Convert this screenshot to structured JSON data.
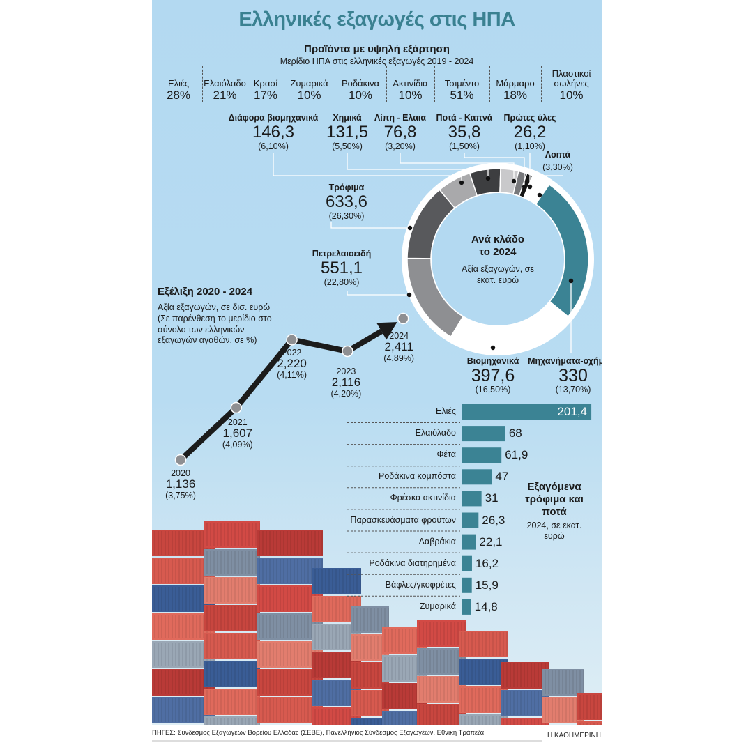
{
  "title": "Ελληνικές εξαγωγές στις ΗΠΑ",
  "products": {
    "heading": "Προϊόντα με υψηλή εξάρτηση",
    "subheading": "Μερίδιο ΗΠΑ στις ελληνικές εξαγωγές 2019 - 2024",
    "items": [
      {
        "name": "Ελιές",
        "share": "28%"
      },
      {
        "name": "Ελαιόλαδο",
        "share": "21%"
      },
      {
        "name": "Κρασί",
        "share": "17%"
      },
      {
        "name": "Ζυμαρικά",
        "share": "10%"
      },
      {
        "name": "Ροδάκινα",
        "share": "10%"
      },
      {
        "name": "Ακτινίδια",
        "share": "10%"
      },
      {
        "name": "Τσιμέντο",
        "share": "51%"
      },
      {
        "name": "Μάρμαρο",
        "share": "18%"
      },
      {
        "name": "Πλαστικοί σωλήνες",
        "share": "10%"
      }
    ]
  },
  "chart_data": [
    {
      "type": "pie",
      "title": "Ανά κλάδο το 2024",
      "subtitle": "Αξία εξαγωγών, σε εκατ. ευρώ",
      "slices": [
        {
          "label": "Διάφορα βιομηχανικά",
          "value": 146.3,
          "value_text": "146,3",
          "pct_text": "(6,10%)",
          "pct": 6.1,
          "color": "#a9a9ab"
        },
        {
          "label": "Χημικά",
          "value": 131.5,
          "value_text": "131,5",
          "pct_text": "(5,50%)",
          "pct": 5.5,
          "color": "#3d3e40"
        },
        {
          "label": "Λίπη - Ελαια",
          "value": 76.8,
          "value_text": "76,8",
          "pct_text": "(3,20%)",
          "pct": 3.2,
          "color": "#c9c9cb"
        },
        {
          "label": "Ποτά - Καπνά",
          "value": 35.8,
          "value_text": "35,8",
          "pct_text": "(1,50%)",
          "pct": 1.5,
          "color": "#77787b"
        },
        {
          "label": "Πρώτες ύλες",
          "value": 26.2,
          "value_text": "26,2",
          "pct_text": "(1,10%)",
          "pct": 1.1,
          "color": "#151515"
        },
        {
          "label": "Λοιπά",
          "value": null,
          "value_text": null,
          "pct_text": "(3,30%)",
          "pct": 3.3,
          "color": "#ffffff"
        },
        {
          "label": "Τρόφιμα",
          "value": 633.6,
          "value_text": "633,6",
          "pct_text": "(26,30%)",
          "pct": 26.3,
          "color": "#3b8394"
        },
        {
          "label": "Πετρελαιοειδή",
          "value": 551.1,
          "value_text": "551,1",
          "pct_text": "(22,80%)",
          "pct": 22.8,
          "color": "#ffffff"
        },
        {
          "label": "Βιομηχανικά",
          "value": 397.6,
          "value_text": "397,6",
          "pct_text": "(16,50%)",
          "pct": 16.5,
          "color": "#8e8f92"
        },
        {
          "label": "Μηχανήματα-οχήματα",
          "value": 330,
          "value_text": "330",
          "pct_text": "(13,70%)",
          "pct": 13.7,
          "color": "#58595c"
        }
      ]
    },
    {
      "type": "line",
      "title": "Εξέλιξη 2020 - 2024",
      "subtitle": "Αξία εξαγωγών, σε δισ. ευρώ",
      "note": "(Σε παρένθεση το μερίδιο στο σύνολο των ελληνικών εξαγωγών αγαθών, σε %)",
      "x": [
        "2020",
        "2021",
        "2022",
        "2023",
        "2024"
      ],
      "values": [
        1.136,
        1.607,
        2.22,
        2.116,
        2.411
      ],
      "value_text": [
        "1,136",
        "1,607",
        "2,220",
        "2,116",
        "2,411"
      ],
      "share_text": [
        "(3,75%)",
        "(4,09%)",
        "(4,11%)",
        "(4,20%)",
        "(4,89%)"
      ]
    },
    {
      "type": "bar",
      "title": "Εξαγόμενα τρόφιμα και ποτά",
      "subtitle": "2024, σε εκατ. ευρώ",
      "categories": [
        "Ελιές",
        "Ελαιόλαδο",
        "Φέτα",
        "Ροδάκινα κομπόστα",
        "Φρέσκα ακτινίδια",
        "Παρασκευάσματα φρούτων",
        "Λαβράκια",
        "Ροδάκινα διατηρημένα",
        "Βάφλες/γκοφρέτες",
        "Ζυμαρικά"
      ],
      "values": [
        201.4,
        68,
        61.9,
        47,
        31,
        26.3,
        22.1,
        16.2,
        15.9,
        14.8
      ],
      "value_text": [
        "201,4",
        "68",
        "61,9",
        "47",
        "31",
        "26,3",
        "22,1",
        "16,2",
        "15,9",
        "14,8"
      ],
      "color": "#3b8394"
    }
  ],
  "footer": {
    "sources": "ΠΗΓΕΣ: Σύνδεσμος Εξαγωγέων Βορείου Ελλάδας (ΣΕΒΕ), Πανελλήνιος Σύνδεσμος Εξαγωγέων, Εθνική Τράπεζα",
    "brand": "Η ΚΑΘΗΜΕΡΙΝΗ"
  }
}
